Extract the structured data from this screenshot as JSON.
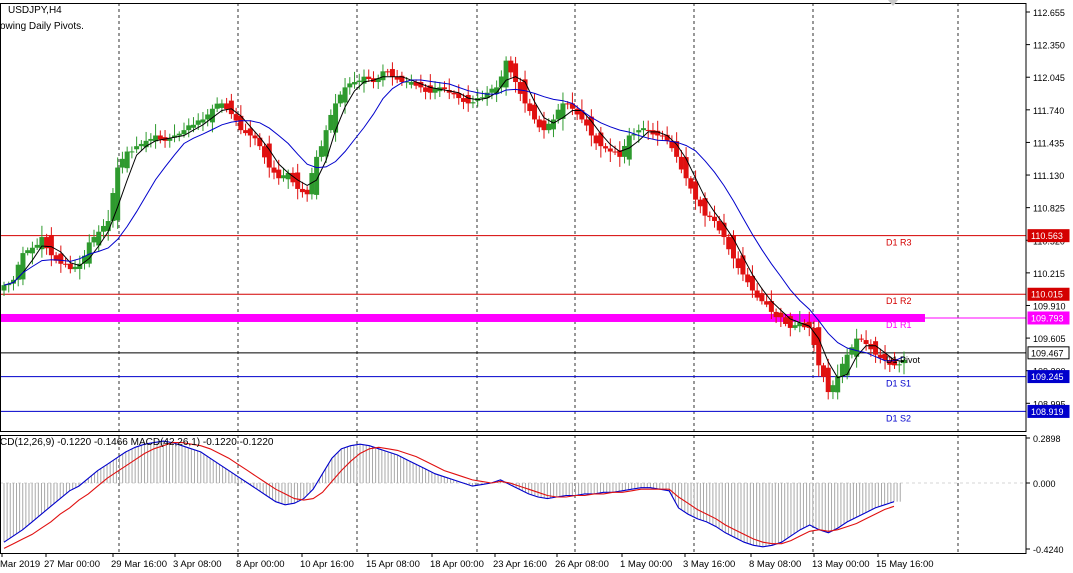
{
  "header": {
    "symbol_timeframe": "USDJPY,H4",
    "indicator_caption": "owing Daily Pivots."
  },
  "macd_caption": "CD(12,26,9) -0.1220 -0.1466 MACD(42,26,1) -0.1220 -0.1220",
  "price_axis": {
    "ticks": [
      "112.655",
      "112.350",
      "112.045",
      "111.740",
      "111.435",
      "111.130",
      "110.825",
      "110.520",
      "110.215",
      "109.910",
      "109.605",
      "109.300",
      "108.995"
    ]
  },
  "macd_axis": {
    "ticks": [
      "0.2898",
      "0.000",
      "-0.4240"
    ]
  },
  "time_axis": {
    "labels": [
      "Mar 2019",
      "27 Mar 00:00",
      "29 Mar 16:00",
      "3 Apr 08:00",
      "8 Apr 00:00",
      "10 Apr 16:00",
      "15 Apr 08:00",
      "18 Apr 00:00",
      "23 Apr 16:00",
      "26 Apr 08:00",
      "1 May 00:00",
      "3 May 16:00",
      "8 May 08:00",
      "13 May 00:00",
      "15 May 16:00"
    ]
  },
  "pivot_levels": [
    {
      "label": "D1 R3",
      "price": "110.563",
      "color": "#d40000"
    },
    {
      "label": "D1 R2",
      "price": "110.015",
      "color": "#d40000"
    },
    {
      "label": "D1 R1",
      "price": "109.793",
      "color": "#ff00ff"
    },
    {
      "label": "D1 Pivot",
      "price": "109.467",
      "color": "#000000"
    },
    {
      "label": "D1 S1",
      "price": "109.245",
      "color": "#0000cc"
    },
    {
      "label": "D1 S2",
      "price": "108.919",
      "color": "#0000cc"
    }
  ],
  "colors": {
    "bull_candle": "#2e9a2e",
    "bear_candle": "#e01010",
    "fast_ma": "#000000",
    "slow_ma": "#0000cc",
    "macd_line": "#0000cc",
    "signal_line": "#e01010",
    "histogram": "#a8a8a8"
  },
  "chart_data": {
    "type": "candlestick",
    "symbol": "USDJPY",
    "timeframe": "H4",
    "y_range": [
      108.88,
      112.72
    ],
    "price_series": [
      110.1,
      110.15,
      110.4,
      110.45,
      110.55,
      110.38,
      110.3,
      110.25,
      110.3,
      110.5,
      110.6,
      110.7,
      111.2,
      111.35,
      111.4,
      111.45,
      111.5,
      111.45,
      111.5,
      111.55,
      111.6,
      111.65,
      111.75,
      111.8,
      111.7,
      111.55,
      111.5,
      111.4,
      111.2,
      111.1,
      111.15,
      111.0,
      110.95,
      111.3,
      111.55,
      111.8,
      111.95,
      112.0,
      112.05,
      112.0,
      112.1,
      112.05,
      112.0,
      112.0,
      111.95,
      111.9,
      111.95,
      111.9,
      111.85,
      111.8,
      111.85,
      111.9,
      111.95,
      112.2,
      112.0,
      111.8,
      111.65,
      111.55,
      111.65,
      111.8,
      111.75,
      111.65,
      111.5,
      111.4,
      111.35,
      111.3,
      111.5,
      111.55,
      111.55,
      111.5,
      111.45,
      111.3,
      111.1,
      110.9,
      110.75,
      110.7,
      110.55,
      110.35,
      110.2,
      110.05,
      109.95,
      109.85,
      109.8,
      109.7,
      109.75,
      109.7,
      109.35,
      109.1,
      109.25,
      109.45,
      109.6,
      109.55,
      109.45,
      109.4,
      109.35,
      109.4
    ],
    "macd": [
      -0.38,
      -0.34,
      -0.3,
      -0.25,
      -0.2,
      -0.15,
      -0.1,
      -0.05,
      -0.02,
      0.03,
      0.08,
      0.12,
      0.16,
      0.2,
      0.23,
      0.25,
      0.26,
      0.27,
      0.26,
      0.24,
      0.22,
      0.2,
      0.16,
      0.12,
      0.08,
      0.04,
      0.0,
      -0.04,
      -0.08,
      -0.12,
      -0.14,
      -0.13,
      -0.1,
      -0.04,
      0.06,
      0.16,
      0.22,
      0.24,
      0.25,
      0.24,
      0.22,
      0.2,
      0.18,
      0.15,
      0.12,
      0.09,
      0.06,
      0.04,
      0.02,
      0.0,
      -0.02,
      -0.01,
      0.0,
      0.02,
      -0.01,
      -0.04,
      -0.07,
      -0.09,
      -0.1,
      -0.09,
      -0.08,
      -0.08,
      -0.07,
      -0.07,
      -0.06,
      -0.06,
      -0.05,
      -0.04,
      -0.03,
      -0.03,
      -0.04,
      -0.05,
      -0.16,
      -0.2,
      -0.23,
      -0.25,
      -0.28,
      -0.32,
      -0.35,
      -0.38,
      -0.4,
      -0.41,
      -0.4,
      -0.38,
      -0.34,
      -0.3,
      -0.27,
      -0.3,
      -0.32,
      -0.29,
      -0.25,
      -0.22,
      -0.19,
      -0.16,
      -0.14,
      -0.12
    ],
    "signal": [
      -0.42,
      -0.39,
      -0.36,
      -0.33,
      -0.29,
      -0.25,
      -0.2,
      -0.16,
      -0.11,
      -0.07,
      -0.02,
      0.03,
      0.07,
      0.11,
      0.15,
      0.19,
      0.22,
      0.24,
      0.26,
      0.26,
      0.25,
      0.24,
      0.22,
      0.19,
      0.16,
      0.12,
      0.08,
      0.04,
      0.0,
      -0.04,
      -0.07,
      -0.1,
      -0.11,
      -0.1,
      -0.06,
      0.01,
      0.08,
      0.14,
      0.19,
      0.22,
      0.23,
      0.22,
      0.21,
      0.19,
      0.17,
      0.14,
      0.11,
      0.08,
      0.06,
      0.04,
      0.02,
      0.01,
      0.0,
      0.01,
      0.0,
      -0.02,
      -0.04,
      -0.06,
      -0.08,
      -0.09,
      -0.09,
      -0.08,
      -0.08,
      -0.07,
      -0.07,
      -0.06,
      -0.06,
      -0.05,
      -0.04,
      -0.04,
      -0.04,
      -0.04,
      -0.09,
      -0.13,
      -0.17,
      -0.2,
      -0.23,
      -0.27,
      -0.3,
      -0.33,
      -0.36,
      -0.38,
      -0.39,
      -0.39,
      -0.37,
      -0.34,
      -0.31,
      -0.3,
      -0.31,
      -0.3,
      -0.28,
      -0.26,
      -0.23,
      -0.2,
      -0.17,
      -0.15
    ],
    "macd_range": [
      -0.47,
      0.31
    ]
  }
}
